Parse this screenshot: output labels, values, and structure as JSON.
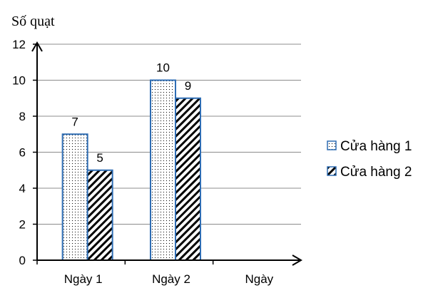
{
  "chart_data": {
    "type": "bar",
    "categories": [
      "Ngày 1",
      "Ngày 2"
    ],
    "series": [
      {
        "name": "Cửa hàng 1",
        "values": [
          7,
          10
        ],
        "pattern": "dots"
      },
      {
        "name": "Cửa hàng 2",
        "values": [
          5,
          9
        ],
        "pattern": "diagonal-hatch"
      }
    ],
    "ylabel": "Số quạt",
    "xlabel": "Ngày",
    "ylim": [
      0,
      12
    ],
    "yticks": [
      0,
      2,
      4,
      6,
      8,
      10,
      12
    ],
    "grid": true,
    "legend_position": "right",
    "bar_border_color": "#2E6DB4"
  }
}
